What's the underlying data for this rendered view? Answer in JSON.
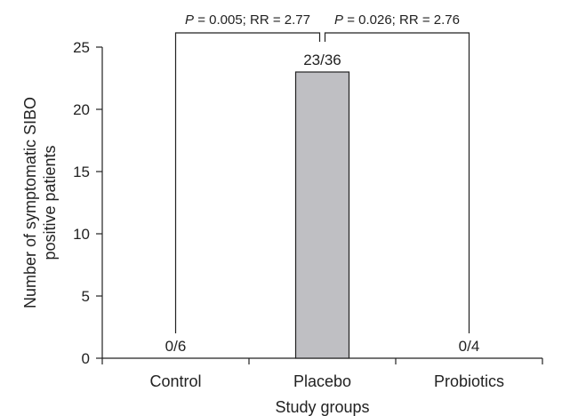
{
  "chart_data": {
    "type": "bar",
    "categories": [
      "Control",
      "Placebo",
      "Probiotics"
    ],
    "values": [
      0,
      23,
      0
    ],
    "data_labels": [
      "0/6",
      "23/36",
      "0/4"
    ],
    "xlabel": "Study groups",
    "ylabel_lines": [
      "Number of symptomatic SIBO",
      "positive patients"
    ],
    "ylim": [
      0,
      25
    ],
    "yticks": [
      0,
      5,
      10,
      15,
      20,
      25
    ],
    "bar_color": "#bfbfc3",
    "annotations": [
      {
        "from": "Control",
        "to": "Placebo",
        "p_symbol": "P",
        "text": " = 0.005; RR = 2.77"
      },
      {
        "from": "Placebo",
        "to": "Probiotics",
        "p_symbol": "P",
        "text": " = 0.026; RR = 2.76"
      }
    ]
  }
}
